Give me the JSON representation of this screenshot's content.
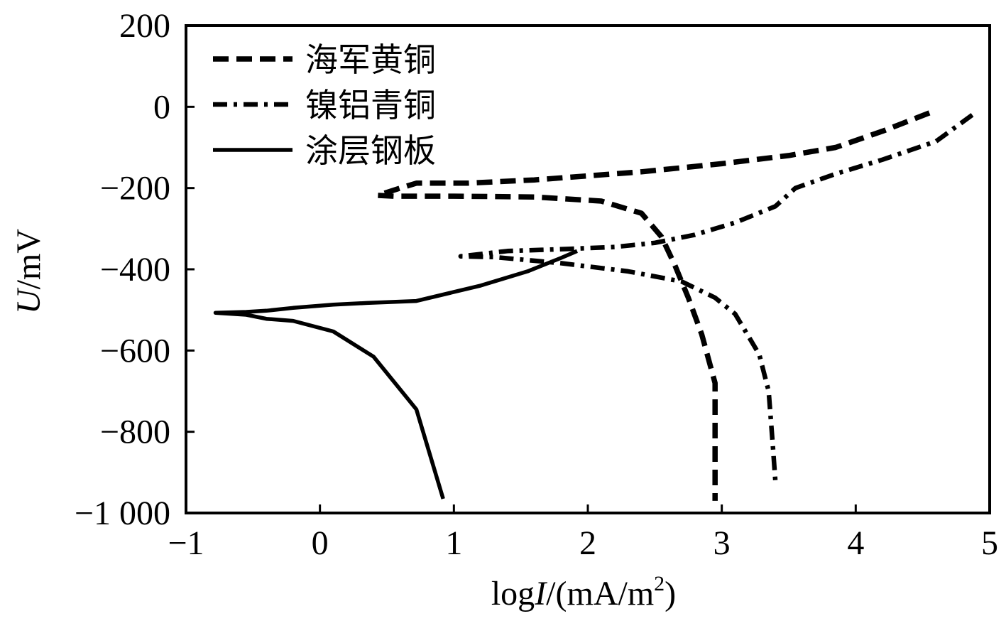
{
  "chart_data": {
    "type": "line",
    "title": "",
    "xlabel": {
      "prefix": "log",
      "italic": "I",
      "suffix": "/(mA/m",
      "sup": "2",
      "close": ")"
    },
    "ylabel": {
      "italic": "U",
      "suffix": "/mV"
    },
    "xlim": [
      -1,
      5
    ],
    "ylim": [
      -1000,
      200
    ],
    "xticks": [
      -1,
      0,
      1,
      2,
      3,
      4,
      5
    ],
    "xtick_labels": [
      "−1",
      "0",
      "1",
      "2",
      "3",
      "4",
      "5"
    ],
    "yticks": [
      200,
      0,
      -200,
      -400,
      -600,
      -800,
      -1000
    ],
    "ytick_labels": [
      "200",
      "0",
      "−200",
      "−400",
      "−600",
      "−800",
      "−1 000"
    ],
    "legend_position": "top-left",
    "series": [
      {
        "name": "海军黄铜",
        "style": "dashed",
        "points": [
          [
            4.55,
            -15
          ],
          [
            4.2,
            -60
          ],
          [
            3.85,
            -100
          ],
          [
            3.5,
            -120
          ],
          [
            3.0,
            -140
          ],
          [
            2.4,
            -160
          ],
          [
            1.6,
            -180
          ],
          [
            1.1,
            -188
          ],
          [
            0.72,
            -188
          ],
          [
            0.6,
            -200
          ],
          [
            0.43,
            -218
          ],
          [
            0.55,
            -220
          ],
          [
            1.0,
            -220
          ],
          [
            1.6,
            -222
          ],
          [
            2.1,
            -232
          ],
          [
            2.4,
            -262
          ],
          [
            2.55,
            -320
          ],
          [
            2.65,
            -390
          ],
          [
            2.75,
            -470
          ],
          [
            2.85,
            -560
          ],
          [
            2.95,
            -680
          ],
          [
            2.95,
            -850
          ],
          [
            2.95,
            -970
          ]
        ]
      },
      {
        "name": "镍铝青铜",
        "style": "dashdot",
        "points": [
          [
            4.87,
            -20
          ],
          [
            4.6,
            -85
          ],
          [
            4.2,
            -130
          ],
          [
            3.85,
            -165
          ],
          [
            3.55,
            -200
          ],
          [
            3.4,
            -245
          ],
          [
            3.1,
            -285
          ],
          [
            2.8,
            -315
          ],
          [
            2.5,
            -335
          ],
          [
            2.2,
            -345
          ],
          [
            1.85,
            -350
          ],
          [
            1.4,
            -355
          ],
          [
            1.05,
            -368
          ],
          [
            1.3,
            -370
          ],
          [
            1.8,
            -385
          ],
          [
            2.3,
            -405
          ],
          [
            2.7,
            -430
          ],
          [
            2.95,
            -470
          ],
          [
            3.1,
            -510
          ],
          [
            3.28,
            -610
          ],
          [
            3.35,
            -700
          ],
          [
            3.38,
            -830
          ],
          [
            3.4,
            -920
          ]
        ]
      },
      {
        "name": "涂层钢板",
        "style": "solid",
        "points": [
          [
            1.92,
            -355
          ],
          [
            1.8,
            -372
          ],
          [
            1.55,
            -405
          ],
          [
            1.2,
            -440
          ],
          [
            0.72,
            -478
          ],
          [
            0.35,
            -483
          ],
          [
            0.1,
            -487
          ],
          [
            -0.2,
            -495
          ],
          [
            -0.4,
            -502
          ],
          [
            -0.55,
            -505
          ],
          [
            -0.78,
            -507
          ],
          [
            -0.55,
            -512
          ],
          [
            -0.4,
            -522
          ],
          [
            -0.2,
            -527
          ],
          [
            0.1,
            -553
          ],
          [
            0.4,
            -615
          ],
          [
            0.72,
            -745
          ],
          [
            0.92,
            -965
          ]
        ]
      }
    ]
  }
}
